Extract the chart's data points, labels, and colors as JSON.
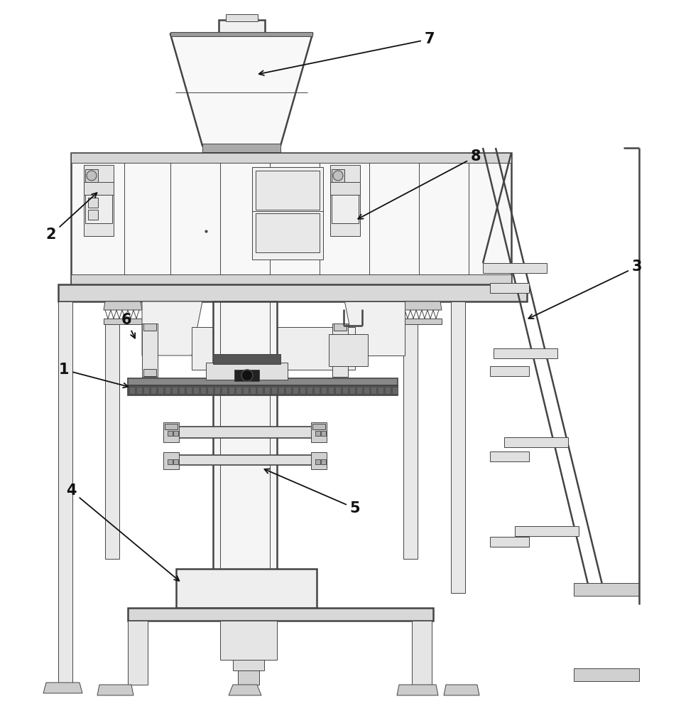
{
  "bg_color": "#ffffff",
  "lc": "#444444",
  "fc_light": "#f5f5f5",
  "fc_mid": "#e8e8e8",
  "fc_dark": "#cccccc",
  "fc_darker": "#aaaaaa",
  "fc_black": "#333333"
}
